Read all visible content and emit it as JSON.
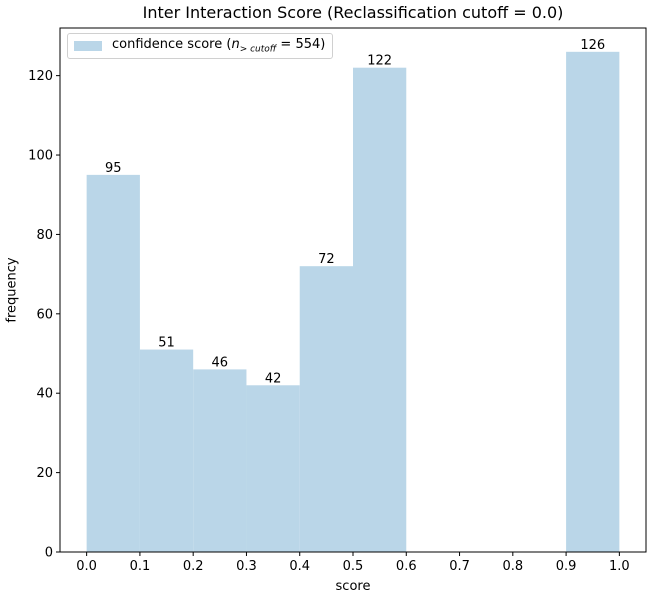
{
  "chart_data": {
    "type": "bar",
    "title": "Inter Interaction Score (Reclassification cutoff = 0.0)",
    "xlabel": "score",
    "ylabel": "frequency",
    "bins": [
      {
        "start": 0.0,
        "end": 0.1,
        "value": 95
      },
      {
        "start": 0.1,
        "end": 0.2,
        "value": 51
      },
      {
        "start": 0.2,
        "end": 0.3,
        "value": 46
      },
      {
        "start": 0.3,
        "end": 0.4,
        "value": 42
      },
      {
        "start": 0.4,
        "end": 0.5,
        "value": 72
      },
      {
        "start": 0.5,
        "end": 0.6,
        "value": 122
      },
      {
        "start": 0.9,
        "end": 1.0,
        "value": 126
      }
    ],
    "xlim": [
      -0.05,
      1.05
    ],
    "ylim": [
      0,
      132
    ],
    "xticks": [
      "0.0",
      "0.1",
      "0.2",
      "0.3",
      "0.4",
      "0.5",
      "0.6",
      "0.7",
      "0.8",
      "0.9",
      "1.0"
    ],
    "yticks": [
      "0",
      "20",
      "40",
      "60",
      "80",
      "100",
      "120"
    ],
    "legend": {
      "label_prefix": "confidence score (",
      "n": "n",
      "subscript": "> cutoff",
      "label_suffix": " = 554)",
      "placement": "top-left"
    },
    "bar_color": "#bad6e8",
    "grid": false
  }
}
